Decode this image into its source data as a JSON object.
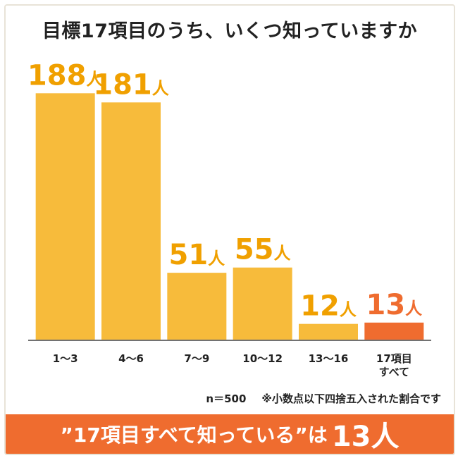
{
  "chart_data": {
    "type": "bar",
    "title": "目標17項目のうち、いくつ知っていますか",
    "categories": [
      [
        "1～3"
      ],
      [
        "4～6"
      ],
      [
        "7～9"
      ],
      [
        "10～12"
      ],
      [
        "13～16"
      ],
      [
        "17項目",
        "すべて"
      ]
    ],
    "values": [
      188,
      181,
      51,
      55,
      12,
      13
    ],
    "value_unit": "人",
    "ylim": [
      0,
      200
    ],
    "grid": false,
    "colors": [
      "#f7bb3b",
      "#f7bb3b",
      "#f7bb3b",
      "#f7bb3b",
      "#f7bb3b",
      "#ef6c2f"
    ],
    "label_colors": [
      "#f0a000",
      "#f0a000",
      "#f0a000",
      "#f0a000",
      "#f0a000",
      "#ef6c2f"
    ]
  },
  "note": {
    "sample": "n＝500",
    "rounding": "※小数点以下四捨五入された割合です"
  },
  "banner": {
    "text": "”17項目すべて知っている”は",
    "highlight": "13人"
  }
}
